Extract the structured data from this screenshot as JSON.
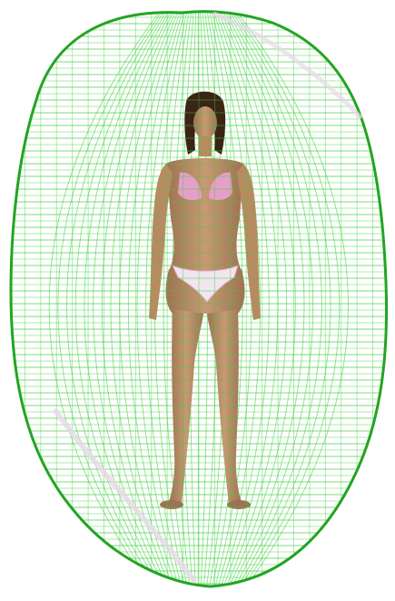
{
  "scene": {
    "subject": "standing-human-figure-in-bikini",
    "overlay": "wireframe-ellipsoid-mesh",
    "colors": {
      "background": "#ffffff",
      "mesh": "#3ccf3c",
      "mesh_dark": "#22a522",
      "mesh_highlight": "#e8d8ea",
      "skin": "#c69a73",
      "skin_shadow": "#9c7352",
      "hair": "#3a2416",
      "bikini": "#e59fc8",
      "bikini_bottom": "#efe6ef"
    }
  }
}
